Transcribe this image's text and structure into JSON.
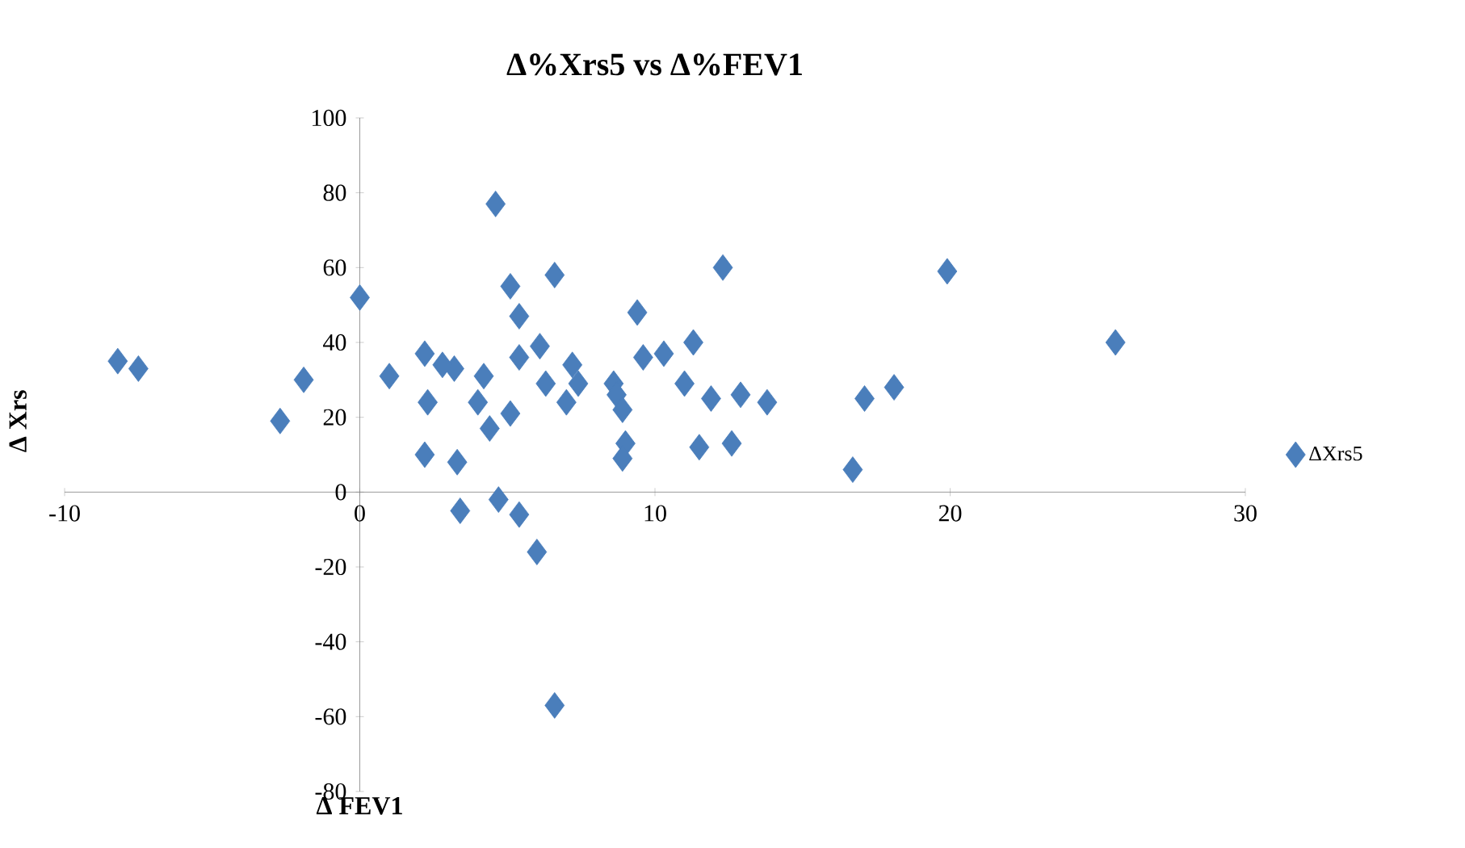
{
  "chart_data": {
    "type": "scatter",
    "title": "Δ%Xrs5 vs Δ%FEV1",
    "xlabel": "Δ FEV1",
    "ylabel": "Δ Xrs",
    "xlim": [
      -10,
      30
    ],
    "xticks": [
      -10,
      0,
      10,
      20,
      30
    ],
    "ylim": [
      -80,
      100
    ],
    "yticks": [
      -80,
      -60,
      -40,
      -20,
      0,
      20,
      40,
      60,
      80,
      100
    ],
    "grid": false,
    "legend": "right",
    "marker": "diamond",
    "series": [
      {
        "name": "ΔXrs5",
        "color": "#4a7ebb",
        "x": [
          -8.2,
          -7.5,
          -2.7,
          -1.9,
          0,
          1,
          2.2,
          2.3,
          3.2,
          2.8,
          4.2,
          4,
          4.4,
          5.1,
          2.2,
          3.3,
          3.4,
          4.7,
          5.4,
          5.1,
          5.4,
          6.1,
          5.4,
          6.6,
          6.3,
          7.2,
          7.0,
          7.4,
          8.6,
          8.7,
          8.9,
          9.0,
          8.9,
          9.4,
          9.6,
          10.3,
          11.3,
          11.0,
          11.9,
          12.9,
          13.8,
          11.5,
          12.6,
          12.3,
          4.6,
          6.6,
          6.0,
          19.9,
          25.6,
          16.7,
          17.1,
          18.1
        ],
        "values": [
          35,
          33,
          19,
          30,
          52,
          31,
          37,
          24,
          33,
          34,
          31,
          24,
          17,
          21,
          10,
          8,
          -5,
          -2,
          -6,
          55,
          47,
          39,
          36,
          58,
          29,
          34,
          24,
          29,
          29,
          26,
          22,
          13,
          9,
          48,
          36,
          37,
          40,
          29,
          25,
          26,
          24,
          12,
          13,
          60,
          77,
          -57,
          -16,
          59,
          40,
          6,
          25,
          28
        ]
      }
    ]
  }
}
